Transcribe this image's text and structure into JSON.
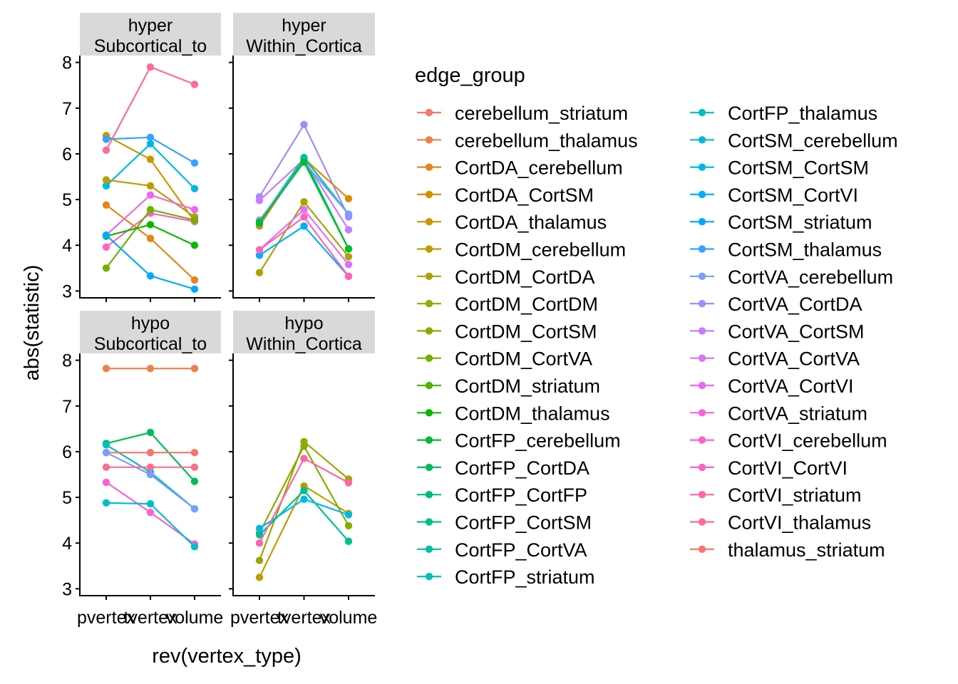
{
  "chart_data": {
    "type": "line",
    "facet_layout": "2x2",
    "x": [
      "pvertex",
      "tvertex",
      "volume"
    ],
    "xlabel": "rev(vertex_type)",
    "ylabel": "abs(statistic)",
    "ylim": [
      2.85,
      8.15
    ],
    "yticks": [
      3,
      4,
      5,
      6,
      7,
      8
    ],
    "grid": false,
    "legend": {
      "title": "edge_group",
      "placement": "right",
      "columns": 2,
      "entries": [
        {
          "name": "cerebellum_striatum",
          "color": "#F8766D"
        },
        {
          "name": "cerebellum_thalamus",
          "color": "#EF7F49"
        },
        {
          "name": "CortDA_cerebellum",
          "color": "#E3861E"
        },
        {
          "name": "CortDA_CortSM",
          "color": "#D98E00"
        },
        {
          "name": "CortDA_thalamus",
          "color": "#CD9600"
        },
        {
          "name": "CortDM_cerebellum",
          "color": "#BC9D00"
        },
        {
          "name": "CortDM_CortDA",
          "color": "#ABA300"
        },
        {
          "name": "CortDM_CortDM",
          "color": "#9AA800"
        },
        {
          "name": "CortDM_CortSM",
          "color": "#86AC00"
        },
        {
          "name": "CortDM_CortVA",
          "color": "#6FB100"
        },
        {
          "name": "CortDM_striatum",
          "color": "#4EB400"
        },
        {
          "name": "CortDM_thalamus",
          "color": "#0CB702"
        },
        {
          "name": "CortFP_cerebellum",
          "color": "#00BA38"
        },
        {
          "name": "CortFP_CortDA",
          "color": "#00BC59"
        },
        {
          "name": "CortFP_CortFP",
          "color": "#00BE74"
        },
        {
          "name": "CortFP_CortSM",
          "color": "#00BF8C"
        },
        {
          "name": "CortFP_CortVA",
          "color": "#00C0A3"
        },
        {
          "name": "CortFP_striatum",
          "color": "#00C0B8"
        },
        {
          "name": "CortFP_thalamus",
          "color": "#00BFC4"
        },
        {
          "name": "CortSM_cerebellum",
          "color": "#00BCD8"
        },
        {
          "name": "CortSM_CortSM",
          "color": "#00B8E7"
        },
        {
          "name": "CortSM_CortVI",
          "color": "#00B0F6"
        },
        {
          "name": "CortSM_striatum",
          "color": "#00A9FF"
        },
        {
          "name": "CortSM_thalamus",
          "color": "#35A2FF"
        },
        {
          "name": "CortVA_cerebellum",
          "color": "#7A9DFF"
        },
        {
          "name": "CortVA_CortDA",
          "color": "#A58AFF"
        },
        {
          "name": "CortVA_CortSM",
          "color": "#C77CFF"
        },
        {
          "name": "CortVA_CortVA",
          "color": "#DF70F8"
        },
        {
          "name": "CortVA_CortVI",
          "color": "#ED68ED"
        },
        {
          "name": "CortVA_striatum",
          "color": "#FA62DB"
        },
        {
          "name": "CortVI_cerebellum",
          "color": "#FF61C9"
        },
        {
          "name": "CortVI_CortVI",
          "color": "#FF62BC"
        },
        {
          "name": "CortVI_striatum",
          "color": "#FF65AA"
        },
        {
          "name": "CortVI_thalamus",
          "color": "#FF6C91"
        },
        {
          "name": "thalamus_striatum",
          "color": "#F8766D"
        }
      ]
    },
    "panels": [
      {
        "strip": [
          "hyper",
          "Subcortical_to"
        ],
        "series": [
          {
            "color": "#FF6C91",
            "values": [
              6.08,
              7.9,
              7.52
            ]
          },
          {
            "color": "#CD9600",
            "values": [
              6.4,
              5.88,
              4.52
            ]
          },
          {
            "color": "#35A2FF",
            "values": [
              6.32,
              6.36,
              5.8
            ]
          },
          {
            "color": "#00B8E7",
            "values": [
              5.3,
              6.22,
              5.24
            ]
          },
          {
            "color": "#BC9D00",
            "values": [
              5.43,
              5.3,
              4.62
            ]
          },
          {
            "color": "#E3861E",
            "values": [
              4.88,
              4.15,
              3.24
            ]
          },
          {
            "color": "#ED68ED",
            "values": [
              4.22,
              5.1,
              4.78
            ]
          },
          {
            "color": "#FF61C9",
            "values": [
              3.96,
              4.7,
              4.52
            ]
          },
          {
            "color": "#6FB100",
            "values": [
              3.5,
              4.78,
              4.55
            ]
          },
          {
            "color": "#0CB702",
            "values": [
              4.2,
              4.45,
              4.0
            ]
          },
          {
            "color": "#00A9FF",
            "values": [
              4.22,
              3.33,
              3.04
            ]
          }
        ]
      },
      {
        "strip": [
          "hyper",
          "Within_Cortica"
        ],
        "series": [
          {
            "color": "#A58AFF",
            "values": [
              5.06,
              6.64,
              4.62
            ]
          },
          {
            "color": "#C77CFF",
            "values": [
              4.98,
              5.88,
              4.34
            ]
          },
          {
            "color": "#D98E00",
            "values": [
              4.42,
              5.9,
              5.02
            ]
          },
          {
            "color": "#00BE74",
            "values": [
              4.48,
              5.9,
              3.92
            ]
          },
          {
            "color": "#00C0A3",
            "values": [
              4.52,
              5.92,
              4.68
            ]
          },
          {
            "color": "#7A9DFF",
            "values": [
              4.55,
              5.82,
              4.68
            ]
          },
          {
            "color": "#00BA38",
            "values": [
              4.5,
              5.82,
              3.92
            ]
          },
          {
            "color": "#ABA300",
            "values": [
              3.4,
              4.95,
              3.75
            ]
          },
          {
            "color": "#00B0F6",
            "values": [
              3.78,
              4.42,
              3.32
            ]
          },
          {
            "color": "#DF70F8",
            "values": [
              3.9,
              4.78,
              3.58
            ]
          },
          {
            "color": "#FF62BC",
            "values": [
              3.9,
              4.62,
              3.32
            ]
          }
        ]
      },
      {
        "strip": [
          "hypo",
          "Subcortical_to"
        ],
        "series": [
          {
            "color": "#EF7F49",
            "values": [
              7.82,
              7.82,
              7.82
            ]
          },
          {
            "color": "#00BC59",
            "values": [
              6.18,
              6.42,
              5.35
            ]
          },
          {
            "color": "#00C0B8",
            "values": [
              6.15,
              5.55,
              4.75
            ]
          },
          {
            "color": "#F8766D",
            "values": [
              5.98,
              5.98,
              5.98
            ]
          },
          {
            "color": "#7A9DFF",
            "values": [
              5.98,
              5.5,
              4.75
            ]
          },
          {
            "color": "#FF6C91",
            "values": [
              5.66,
              5.66,
              5.66
            ]
          },
          {
            "color": "#FA62DB",
            "values": [
              5.33,
              4.67,
              3.98
            ]
          },
          {
            "color": "#00BFC4",
            "values": [
              4.88,
              4.86,
              3.92
            ]
          }
        ]
      },
      {
        "strip": [
          "hypo",
          "Within_Cortica"
        ],
        "series": [
          {
            "color": "#9AA800",
            "values": [
              3.62,
              6.22,
              5.4
            ]
          },
          {
            "color": "#BC9D00",
            "values": [
              3.25,
              5.25,
              4.65
            ]
          },
          {
            "color": "#86AC00",
            "values": [
              4.22,
              6.12,
              4.38
            ]
          },
          {
            "color": "#00BF8C",
            "values": [
              4.18,
              5.15,
              4.04
            ]
          },
          {
            "color": "#00B8E7",
            "values": [
              4.32,
              4.96,
              4.62
            ]
          },
          {
            "color": "#FF65AA",
            "values": [
              4.0,
              5.85,
              5.32
            ]
          }
        ]
      }
    ]
  }
}
